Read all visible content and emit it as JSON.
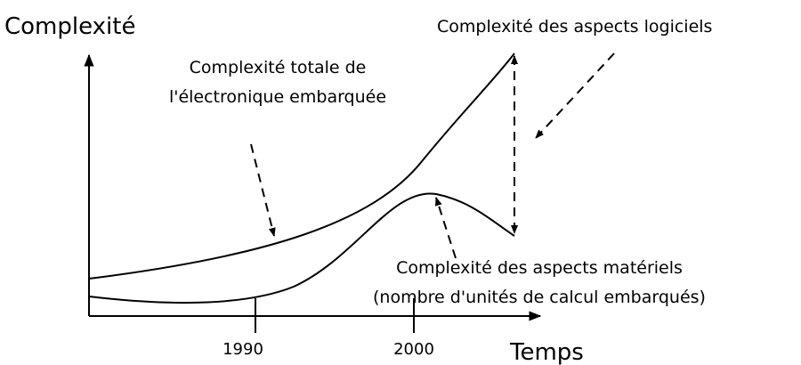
{
  "axes": {
    "y_title": "Complexité",
    "x_title": "Temps",
    "x_ticks": [
      "1990",
      "2000"
    ]
  },
  "annotations": {
    "total": [
      "Complexité totale de",
      "l'électronique embarquée"
    ],
    "software": "Complexité des aspects logiciels",
    "hardware": [
      "Complexité des aspects matériels",
      "(nombre d'unités de calcul embarqués)"
    ]
  }
}
